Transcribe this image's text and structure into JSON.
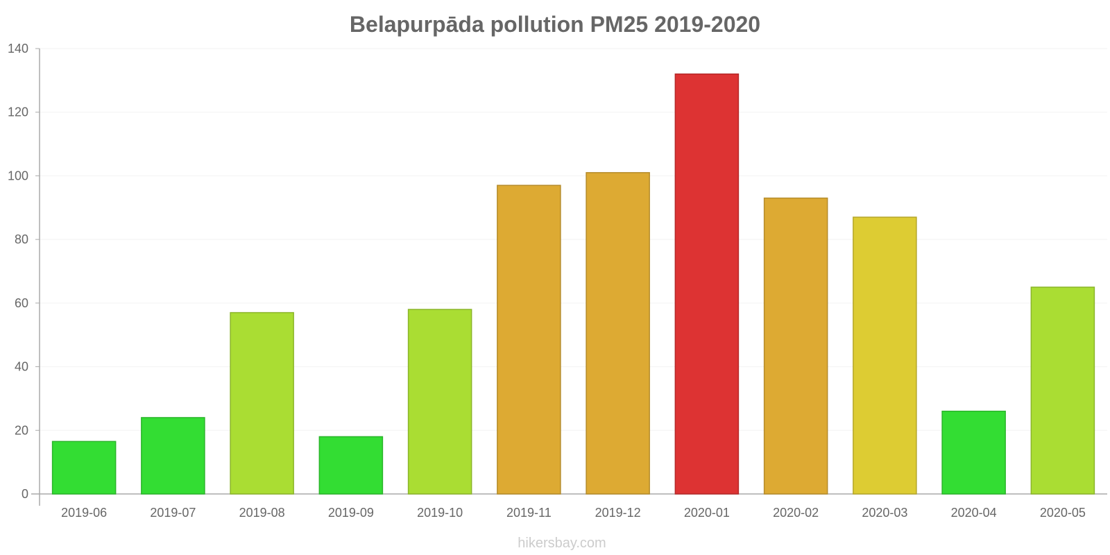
{
  "chart_data": {
    "type": "bar",
    "title": "Belapurpāda pollution PM25 2019-2020",
    "xlabel": "",
    "ylabel": "",
    "ylim": [
      0,
      140
    ],
    "yticks": [
      0,
      20,
      40,
      60,
      80,
      100,
      120,
      140
    ],
    "grid": true,
    "categories": [
      "2019-06",
      "2019-07",
      "2019-08",
      "2019-09",
      "2019-10",
      "2019-11",
      "2019-12",
      "2020-01",
      "2020-02",
      "2020-03",
      "2020-04",
      "2020-05"
    ],
    "values": [
      16.5,
      24,
      57,
      18,
      58,
      97,
      101,
      132,
      93,
      87,
      26,
      65
    ],
    "colors": [
      "#33dd33",
      "#33dd33",
      "#aadd33",
      "#33dd33",
      "#aadd33",
      "#ddaa33",
      "#ddaa33",
      "#dd3333",
      "#ddaa33",
      "#ddcc33",
      "#33dd33",
      "#aadd33"
    ]
  },
  "watermark": "hikersbay.com"
}
